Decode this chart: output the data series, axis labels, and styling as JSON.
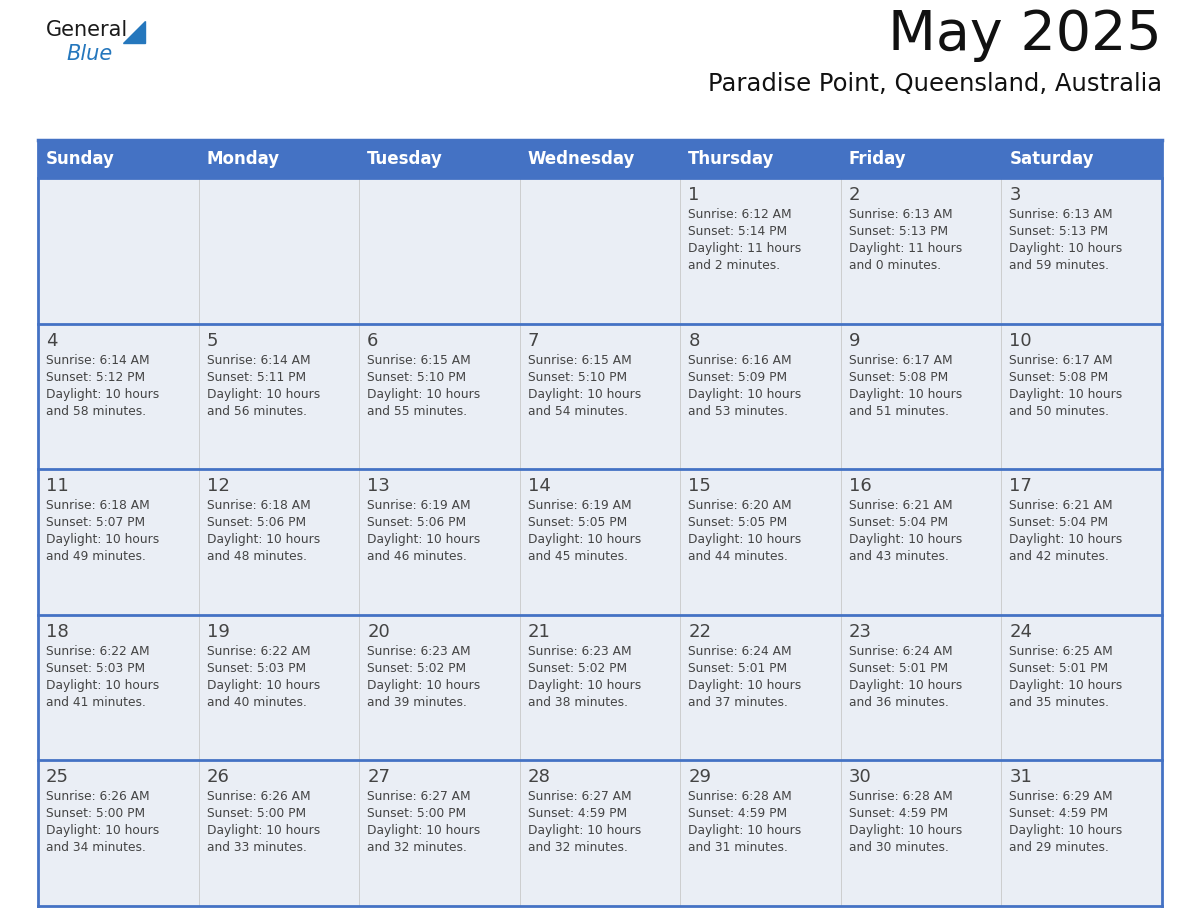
{
  "title": "May 2025",
  "subtitle": "Paradise Point, Queensland, Australia",
  "header_bg": "#4472C4",
  "header_text_color": "#FFFFFF",
  "cell_bg_odd": "#EAEEF5",
  "cell_bg_even": "#FFFFFF",
  "day_names": [
    "Sunday",
    "Monday",
    "Tuesday",
    "Wednesday",
    "Thursday",
    "Friday",
    "Saturday"
  ],
  "weeks": [
    [
      {
        "day": "",
        "sunrise": "",
        "sunset": "",
        "daylight": ""
      },
      {
        "day": "",
        "sunrise": "",
        "sunset": "",
        "daylight": ""
      },
      {
        "day": "",
        "sunrise": "",
        "sunset": "",
        "daylight": ""
      },
      {
        "day": "",
        "sunrise": "",
        "sunset": "",
        "daylight": ""
      },
      {
        "day": "1",
        "sunrise": "Sunrise: 6:12 AM",
        "sunset": "Sunset: 5:14 PM",
        "daylight": "Daylight: 11 hours\nand 2 minutes."
      },
      {
        "day": "2",
        "sunrise": "Sunrise: 6:13 AM",
        "sunset": "Sunset: 5:13 PM",
        "daylight": "Daylight: 11 hours\nand 0 minutes."
      },
      {
        "day": "3",
        "sunrise": "Sunrise: 6:13 AM",
        "sunset": "Sunset: 5:13 PM",
        "daylight": "Daylight: 10 hours\nand 59 minutes."
      }
    ],
    [
      {
        "day": "4",
        "sunrise": "Sunrise: 6:14 AM",
        "sunset": "Sunset: 5:12 PM",
        "daylight": "Daylight: 10 hours\nand 58 minutes."
      },
      {
        "day": "5",
        "sunrise": "Sunrise: 6:14 AM",
        "sunset": "Sunset: 5:11 PM",
        "daylight": "Daylight: 10 hours\nand 56 minutes."
      },
      {
        "day": "6",
        "sunrise": "Sunrise: 6:15 AM",
        "sunset": "Sunset: 5:10 PM",
        "daylight": "Daylight: 10 hours\nand 55 minutes."
      },
      {
        "day": "7",
        "sunrise": "Sunrise: 6:15 AM",
        "sunset": "Sunset: 5:10 PM",
        "daylight": "Daylight: 10 hours\nand 54 minutes."
      },
      {
        "day": "8",
        "sunrise": "Sunrise: 6:16 AM",
        "sunset": "Sunset: 5:09 PM",
        "daylight": "Daylight: 10 hours\nand 53 minutes."
      },
      {
        "day": "9",
        "sunrise": "Sunrise: 6:17 AM",
        "sunset": "Sunset: 5:08 PM",
        "daylight": "Daylight: 10 hours\nand 51 minutes."
      },
      {
        "day": "10",
        "sunrise": "Sunrise: 6:17 AM",
        "sunset": "Sunset: 5:08 PM",
        "daylight": "Daylight: 10 hours\nand 50 minutes."
      }
    ],
    [
      {
        "day": "11",
        "sunrise": "Sunrise: 6:18 AM",
        "sunset": "Sunset: 5:07 PM",
        "daylight": "Daylight: 10 hours\nand 49 minutes."
      },
      {
        "day": "12",
        "sunrise": "Sunrise: 6:18 AM",
        "sunset": "Sunset: 5:06 PM",
        "daylight": "Daylight: 10 hours\nand 48 minutes."
      },
      {
        "day": "13",
        "sunrise": "Sunrise: 6:19 AM",
        "sunset": "Sunset: 5:06 PM",
        "daylight": "Daylight: 10 hours\nand 46 minutes."
      },
      {
        "day": "14",
        "sunrise": "Sunrise: 6:19 AM",
        "sunset": "Sunset: 5:05 PM",
        "daylight": "Daylight: 10 hours\nand 45 minutes."
      },
      {
        "day": "15",
        "sunrise": "Sunrise: 6:20 AM",
        "sunset": "Sunset: 5:05 PM",
        "daylight": "Daylight: 10 hours\nand 44 minutes."
      },
      {
        "day": "16",
        "sunrise": "Sunrise: 6:21 AM",
        "sunset": "Sunset: 5:04 PM",
        "daylight": "Daylight: 10 hours\nand 43 minutes."
      },
      {
        "day": "17",
        "sunrise": "Sunrise: 6:21 AM",
        "sunset": "Sunset: 5:04 PM",
        "daylight": "Daylight: 10 hours\nand 42 minutes."
      }
    ],
    [
      {
        "day": "18",
        "sunrise": "Sunrise: 6:22 AM",
        "sunset": "Sunset: 5:03 PM",
        "daylight": "Daylight: 10 hours\nand 41 minutes."
      },
      {
        "day": "19",
        "sunrise": "Sunrise: 6:22 AM",
        "sunset": "Sunset: 5:03 PM",
        "daylight": "Daylight: 10 hours\nand 40 minutes."
      },
      {
        "day": "20",
        "sunrise": "Sunrise: 6:23 AM",
        "sunset": "Sunset: 5:02 PM",
        "daylight": "Daylight: 10 hours\nand 39 minutes."
      },
      {
        "day": "21",
        "sunrise": "Sunrise: 6:23 AM",
        "sunset": "Sunset: 5:02 PM",
        "daylight": "Daylight: 10 hours\nand 38 minutes."
      },
      {
        "day": "22",
        "sunrise": "Sunrise: 6:24 AM",
        "sunset": "Sunset: 5:01 PM",
        "daylight": "Daylight: 10 hours\nand 37 minutes."
      },
      {
        "day": "23",
        "sunrise": "Sunrise: 6:24 AM",
        "sunset": "Sunset: 5:01 PM",
        "daylight": "Daylight: 10 hours\nand 36 minutes."
      },
      {
        "day": "24",
        "sunrise": "Sunrise: 6:25 AM",
        "sunset": "Sunset: 5:01 PM",
        "daylight": "Daylight: 10 hours\nand 35 minutes."
      }
    ],
    [
      {
        "day": "25",
        "sunrise": "Sunrise: 6:26 AM",
        "sunset": "Sunset: 5:00 PM",
        "daylight": "Daylight: 10 hours\nand 34 minutes."
      },
      {
        "day": "26",
        "sunrise": "Sunrise: 6:26 AM",
        "sunset": "Sunset: 5:00 PM",
        "daylight": "Daylight: 10 hours\nand 33 minutes."
      },
      {
        "day": "27",
        "sunrise": "Sunrise: 6:27 AM",
        "sunset": "Sunset: 5:00 PM",
        "daylight": "Daylight: 10 hours\nand 32 minutes."
      },
      {
        "day": "28",
        "sunrise": "Sunrise: 6:27 AM",
        "sunset": "Sunset: 4:59 PM",
        "daylight": "Daylight: 10 hours\nand 32 minutes."
      },
      {
        "day": "29",
        "sunrise": "Sunrise: 6:28 AM",
        "sunset": "Sunset: 4:59 PM",
        "daylight": "Daylight: 10 hours\nand 31 minutes."
      },
      {
        "day": "30",
        "sunrise": "Sunrise: 6:28 AM",
        "sunset": "Sunset: 4:59 PM",
        "daylight": "Daylight: 10 hours\nand 30 minutes."
      },
      {
        "day": "31",
        "sunrise": "Sunrise: 6:29 AM",
        "sunset": "Sunset: 4:59 PM",
        "daylight": "Daylight: 10 hours\nand 29 minutes."
      }
    ]
  ],
  "logo_color_general": "#1a1a1a",
  "logo_color_blue": "#2577BD",
  "logo_triangle_color": "#2577BD",
  "cell_text_color": "#444444",
  "line_color": "#4472C4",
  "border_color": "#4472C4"
}
